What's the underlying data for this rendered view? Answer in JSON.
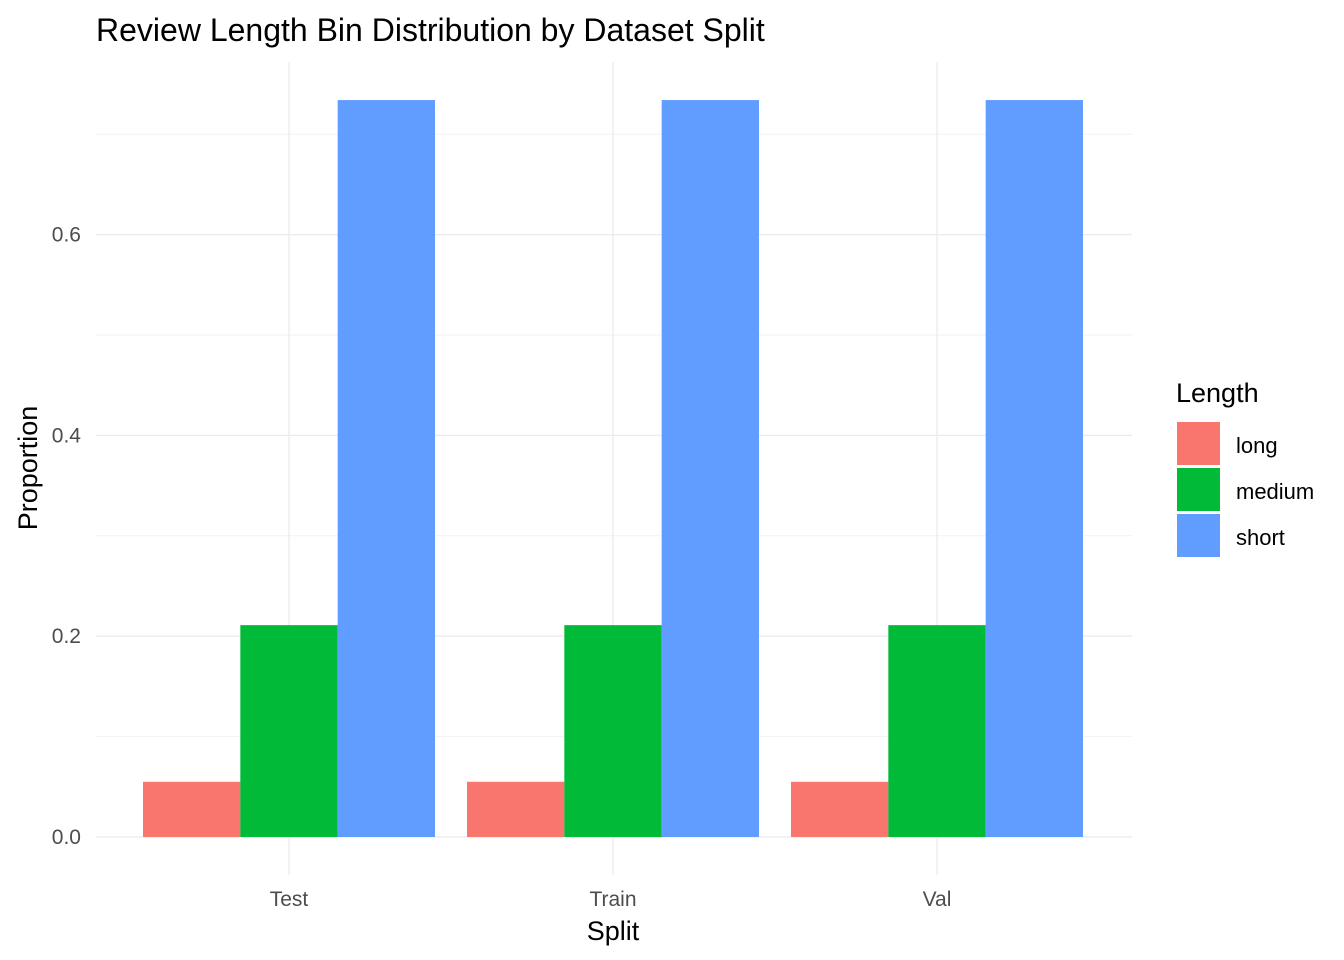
{
  "chart_data": {
    "type": "bar",
    "title": "Review Length Bin Distribution by Dataset Split",
    "xlabel": "Split",
    "ylabel": "Proportion",
    "categories": [
      "Test",
      "Train",
      "Val"
    ],
    "series": [
      {
        "name": "long",
        "values": [
          0.055,
          0.055,
          0.055
        ],
        "color": "#F8766D"
      },
      {
        "name": "medium",
        "values": [
          0.211,
          0.211,
          0.211
        ],
        "color": "#00BA38"
      },
      {
        "name": "short",
        "values": [
          0.734,
          0.734,
          0.734
        ],
        "color": "#619CFF"
      }
    ],
    "ylim": [
      0,
      0.77
    ],
    "yticks": [
      0.0,
      0.2,
      0.4,
      0.6
    ],
    "ytick_labels": [
      "0.0",
      "0.2",
      "0.4",
      "0.6"
    ],
    "legend_title": "Length",
    "legend_position": "right",
    "grid": true
  }
}
